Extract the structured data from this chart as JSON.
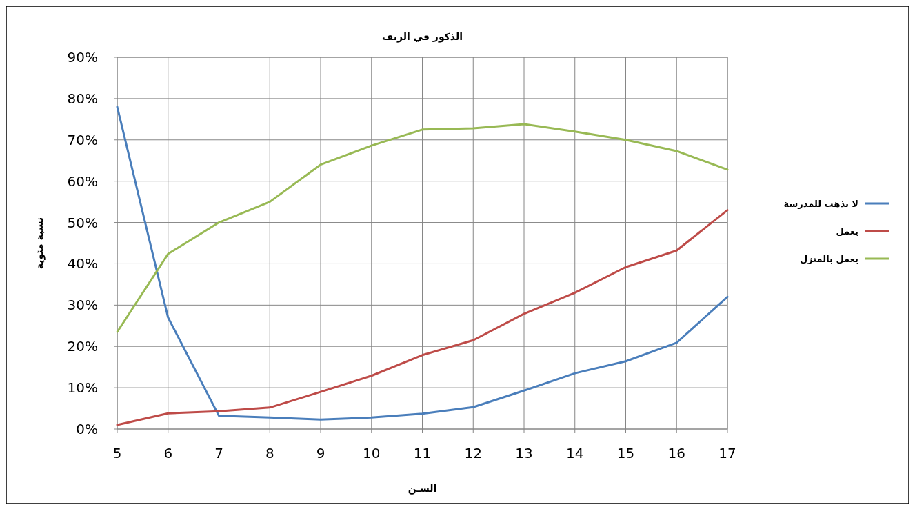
{
  "chart_data": {
    "type": "line",
    "title": "الذكور في الريف",
    "xlabel": "السـن",
    "ylabel": "نسبة مئوية",
    "x": [
      5,
      6,
      7,
      8,
      9,
      10,
      11,
      12,
      13,
      14,
      15,
      16,
      17
    ],
    "series": [
      {
        "name": "لا يذهب للمدرسة",
        "color": "#4a7ebb",
        "values": [
          78,
          27,
          3.2,
          2.8,
          2.3,
          2.8,
          3.7,
          5.3,
          9.3,
          13.5,
          16.4,
          20.9,
          32
        ]
      },
      {
        "name": "يعمل",
        "color": "#be4b48",
        "values": [
          1,
          3.8,
          4.3,
          5.2,
          9,
          12.9,
          17.9,
          21.5,
          27.9,
          33,
          39.2,
          43.2,
          53
        ]
      },
      {
        "name": "يعمل بالمنزل",
        "color": "#98b954",
        "values": [
          23.5,
          42.4,
          50,
          55,
          64,
          68.6,
          72.5,
          72.8,
          73.8,
          72,
          70,
          67.3,
          62.8
        ]
      }
    ],
    "xlim": [
      5,
      17
    ],
    "xticks": [
      5,
      6,
      7,
      8,
      9,
      10,
      11,
      12,
      13,
      14,
      15,
      16,
      17
    ],
    "ylim": [
      0,
      90
    ],
    "yticks": [
      {
        "value": 0,
        "label": "0%"
      },
      {
        "value": 10,
        "label": "10%"
      },
      {
        "value": 20,
        "label": "20%"
      },
      {
        "value": 30,
        "label": "30%"
      },
      {
        "value": 40,
        "label": "40%"
      },
      {
        "value": 50,
        "label": "50%"
      },
      {
        "value": 60,
        "label": "60%"
      },
      {
        "value": 70,
        "label": "70%"
      },
      {
        "value": 80,
        "label": "80%"
      },
      {
        "value": 90,
        "label": "90%"
      }
    ],
    "grid": true,
    "legend": "right",
    "marker": "none",
    "line_style": "solid"
  }
}
